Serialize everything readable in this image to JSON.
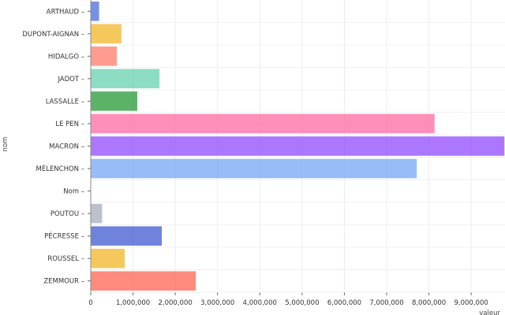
{
  "chart_data": {
    "type": "bar",
    "orientation": "horizontal",
    "title": "",
    "ylabel": "nom",
    "xlabel": "valeur",
    "xlim": [
      0,
      9800000
    ],
    "xticks": [
      0,
      1000000,
      2000000,
      3000000,
      4000000,
      5000000,
      6000000,
      7000000,
      8000000,
      9000000
    ],
    "xtick_labels": [
      "0",
      "1,000,000",
      "2,000,000",
      "3,000,000",
      "4,000,000",
      "5,000,000",
      "6,000,000",
      "7,000,000",
      "8,000,000",
      "9,000,000"
    ],
    "grid": true,
    "categories": [
      "ARTHAUD",
      "DUPONT-AIGNAN",
      "HIDALGO",
      "JADOT",
      "LASSALLE",
      "LE PEN",
      "MACRON",
      "MÉLENCHON",
      "Nom",
      "POUTOU",
      "PÉCRESSE",
      "ROUSSEL",
      "ZEMMOUR"
    ],
    "values": [
      197000,
      725000,
      617000,
      1627000,
      1101000,
      8134000,
      9786000,
      7713000,
      0,
      269000,
      1680000,
      803000,
      2485000
    ],
    "colors": [
      "#4c72e0",
      "#f2b830",
      "#ff8070",
      "#6cd4b4",
      "#2e9e3e",
      "#ff70a6",
      "#9650ff",
      "#7aaaf7",
      "#cccccc",
      "#aab0bc",
      "#4660d4",
      "#f2b830",
      "#ff6a5a"
    ]
  }
}
